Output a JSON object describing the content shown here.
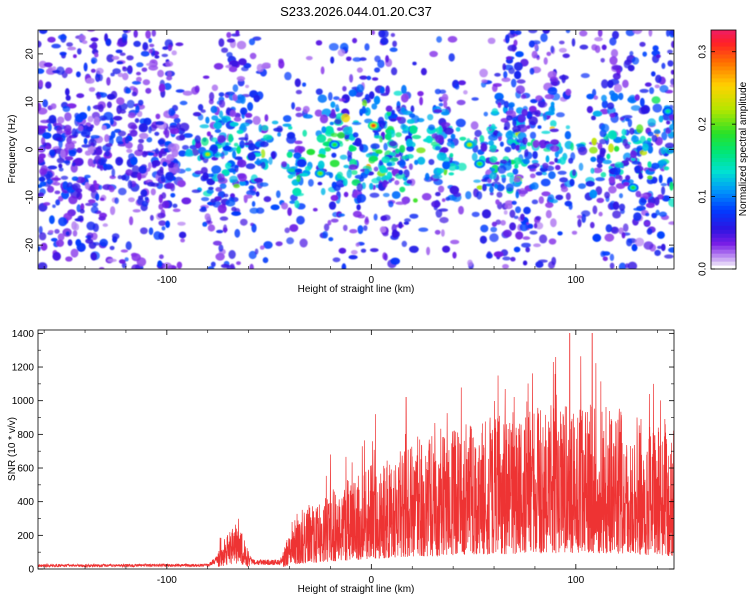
{
  "title": "S233.2026.044.01.20.C37",
  "chart_data": [
    {
      "type": "heatmap",
      "title": "S233.2026.044.01.20.C37",
      "xlabel": "Height of straight line (km)",
      "ylabel": "Frequency (Hz)",
      "xlim": [
        -163,
        148
      ],
      "ylim": [
        -25,
        25
      ],
      "xticks": [
        -100,
        0,
        100
      ],
      "xtick_labels": [
        "-100",
        "0",
        "100"
      ],
      "yticks": [
        -20,
        -10,
        0,
        10,
        20
      ],
      "ytick_labels": [
        "-20",
        "-10",
        "0",
        "10",
        "20"
      ],
      "colorbar": {
        "label": "Normalized spectral amplitude",
        "range": [
          0.0,
          0.33
        ],
        "ticks": [
          0.0,
          0.1,
          0.2,
          0.3
        ],
        "tick_labels": [
          "0.0",
          "0.1",
          "0.2",
          "0.3"
        ]
      },
      "gaps_km": [
        -88,
        -47,
        -28,
        24,
        47,
        100
      ],
      "hot_spots": [
        {
          "x": 1,
          "y": 5,
          "v": 0.3
        },
        {
          "x": -80,
          "y": -1,
          "v": 0.22
        },
        {
          "x": -18,
          "y": 1,
          "v": 0.18
        },
        {
          "x": -25,
          "y": -5,
          "v": 0.2
        },
        {
          "x": 48,
          "y": 1,
          "v": 0.22
        },
        {
          "x": 53,
          "y": -3,
          "v": 0.19
        },
        {
          "x": 128,
          "y": -8,
          "v": 0.18
        },
        {
          "x": 145,
          "y": 8,
          "v": 0.15
        }
      ]
    },
    {
      "type": "line",
      "xlabel": "Height of straight line (km)",
      "ylabel": "SNR (10 * v/v)",
      "xlim": [
        -163,
        148
      ],
      "ylim": [
        0,
        1420
      ],
      "xticks": [
        -100,
        0,
        100
      ],
      "xtick_labels": [
        "-100",
        "0",
        "100"
      ],
      "yticks": [
        0,
        200,
        400,
        600,
        800,
        1000,
        1200,
        1400
      ],
      "ytick_labels": [
        "0",
        "200",
        "400",
        "600",
        "800",
        "1000",
        "1200",
        "1400"
      ],
      "series": [
        {
          "name": "SNR",
          "color": "#ee3333",
          "envelope_x": [
            -163,
            -80,
            -75,
            -66,
            -58,
            -45,
            -35,
            -20,
            0,
            20,
            50,
            90,
            110,
            130,
            148
          ],
          "envelope_mean": [
            20,
            22,
            60,
            140,
            40,
            40,
            150,
            220,
            300,
            360,
            420,
            470,
            470,
            430,
            380
          ],
          "peaks": [
            {
              "x": 97,
              "y": 1400
            },
            {
              "x": 108,
              "y": 1400
            },
            {
              "x": 89,
              "y": 1230
            },
            {
              "x": 62,
              "y": 1150
            },
            {
              "x": 138,
              "y": 1100
            },
            {
              "x": 17,
              "y": 1020
            },
            {
              "x": -66,
              "y": 240
            },
            {
              "x": 2,
              "y": 920
            },
            {
              "x": -20,
              "y": 680
            }
          ]
        }
      ]
    }
  ]
}
